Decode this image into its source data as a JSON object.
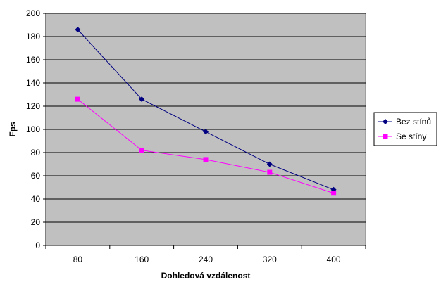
{
  "chart_data": {
    "type": "line",
    "title": "",
    "xlabel": "Dohledová vzdálenost",
    "ylabel": "Fps",
    "categories": [
      "80",
      "160",
      "240",
      "320",
      "400"
    ],
    "ylim": [
      0,
      200
    ],
    "yticks": [
      0,
      20,
      40,
      60,
      80,
      100,
      120,
      140,
      160,
      180,
      200
    ],
    "grid": true,
    "legend_position": "right",
    "plot_background": "#c0c0c0",
    "series": [
      {
        "name": "Bez stínů",
        "values": [
          186,
          126,
          98,
          70,
          48
        ],
        "color": "#000080",
        "marker": "diamond"
      },
      {
        "name": "Se stíny",
        "values": [
          126,
          82,
          74,
          63,
          45
        ],
        "color": "#ff00ff",
        "marker": "square"
      }
    ]
  }
}
